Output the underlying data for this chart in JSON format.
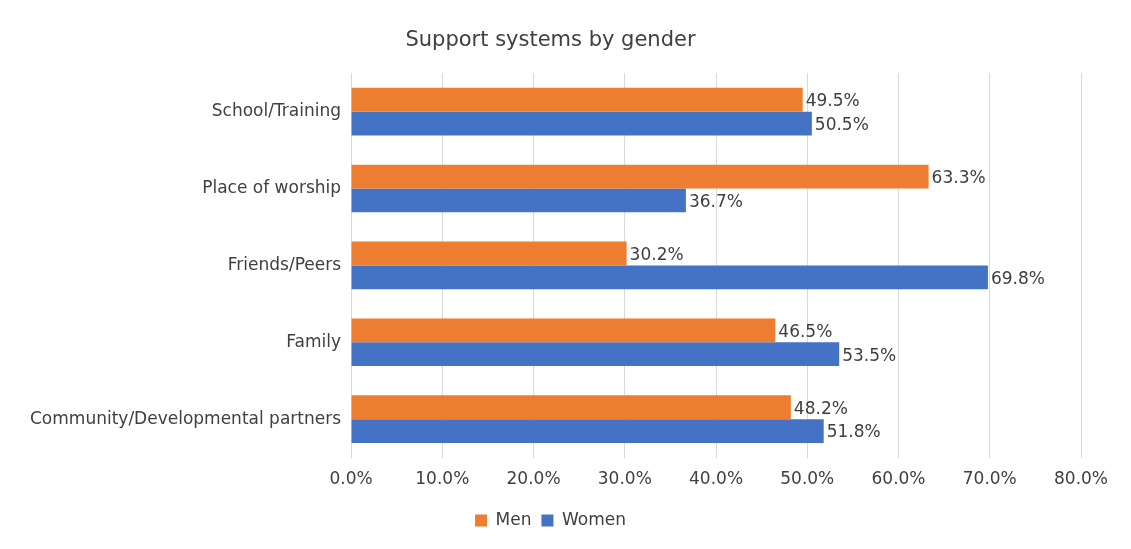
{
  "chart_data": {
    "type": "bar",
    "orientation": "horizontal",
    "title": "Support systems by gender",
    "categories": [
      "School/Training",
      "Place of worship",
      "Friends/Peers",
      "Family",
      "Community/Developmental partners"
    ],
    "series": [
      {
        "name": "Men",
        "color": "#ed7d31",
        "values": [
          49.5,
          63.3,
          30.2,
          46.5,
          48.2
        ],
        "value_labels": [
          "49.5%",
          "63.3%",
          "30.2%",
          "46.5%",
          "48.2%"
        ]
      },
      {
        "name": "Women",
        "color": "#4472c4",
        "values": [
          50.5,
          36.7,
          69.8,
          53.5,
          51.8
        ],
        "value_labels": [
          "50.5%",
          "36.7%",
          "69.8%",
          "53.5%",
          "51.8%"
        ]
      }
    ],
    "xlim": [
      0,
      80
    ],
    "xticks": [
      {
        "value": 0,
        "label": "0.0%"
      },
      {
        "value": 10,
        "label": "10.0%"
      },
      {
        "value": 20,
        "label": "20.0%"
      },
      {
        "value": 30,
        "label": "30.0%"
      },
      {
        "value": 40,
        "label": "40.0%"
      },
      {
        "value": 50,
        "label": "50.0%"
      },
      {
        "value": 60,
        "label": "60.0%"
      },
      {
        "value": 70,
        "label": "70.0%"
      },
      {
        "value": 80,
        "label": "80.0%"
      }
    ],
    "grid": "x",
    "legend": "bottom"
  }
}
